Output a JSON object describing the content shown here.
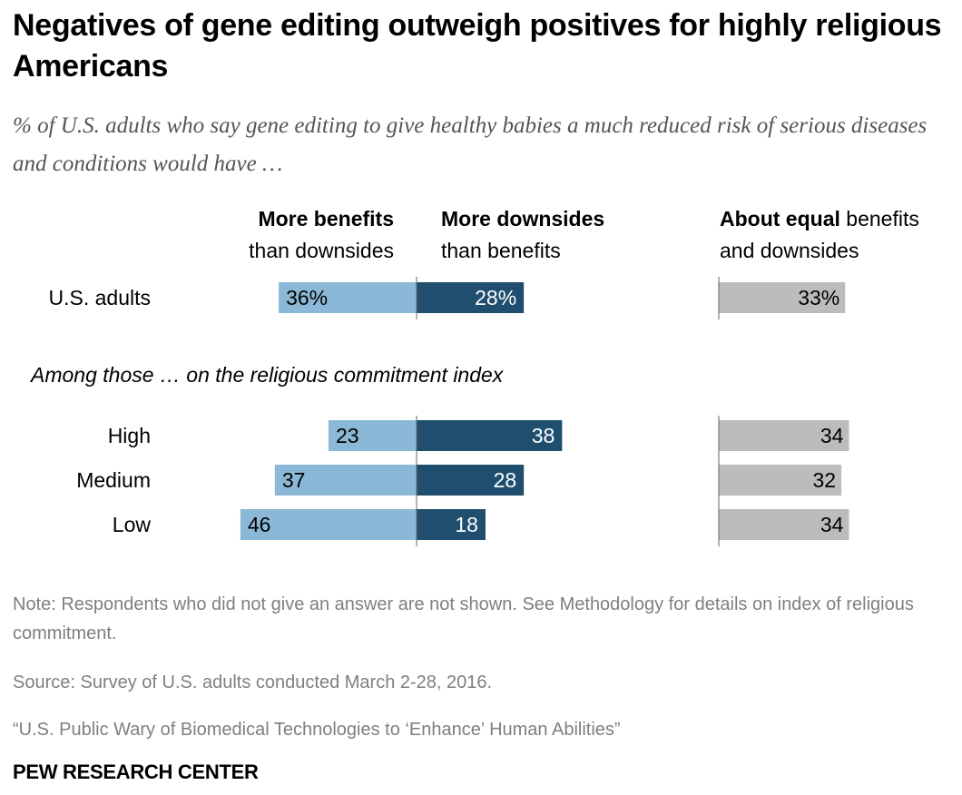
{
  "title": "Negatives of gene editing outweigh positives for highly religious Americans",
  "subtitle": "% of U.S. adults who say gene editing to give healthy babies a much reduced risk of serious diseases and conditions would have …",
  "headers": {
    "benefits_bold": "More benefits",
    "benefits_rest": "than downsides",
    "downsides_bold": "More downsides",
    "downsides_rest": "than benefits",
    "equal_bold": "About equal",
    "equal_rest1": "benefits",
    "equal_rest2": "and downsides"
  },
  "section_label": "Among those … on the religious commitment index",
  "chart_data": {
    "type": "bar",
    "categories": [
      "U.S. adults",
      "High",
      "Medium",
      "Low"
    ],
    "series": [
      {
        "name": "More benefits than downsides",
        "values": [
          36,
          23,
          37,
          46
        ],
        "labels": [
          "36%",
          "23",
          "37",
          "46"
        ]
      },
      {
        "name": "More downsides than benefits",
        "values": [
          28,
          38,
          28,
          18
        ],
        "labels": [
          "28%",
          "38",
          "28",
          "18"
        ]
      },
      {
        "name": "About equal benefits and downsides",
        "values": [
          33,
          34,
          32,
          34
        ],
        "labels": [
          "33%",
          "34",
          "32",
          "34"
        ]
      }
    ],
    "colors": {
      "benefits": "#8bb8d6",
      "downsides": "#1f4e6e",
      "equal": "#bcbcbc"
    }
  },
  "notes": {
    "note": "Note: Respondents who did not give an answer are not shown. See Methodology for details on index of religious commitment.",
    "source": "Source: Survey of U.S. adults conducted March 2-28, 2016.",
    "report": "“U.S. Public Wary of Biomedical Technologies to ‘Enhance’ Human Abilities”"
  },
  "brand": "PEW RESEARCH CENTER"
}
